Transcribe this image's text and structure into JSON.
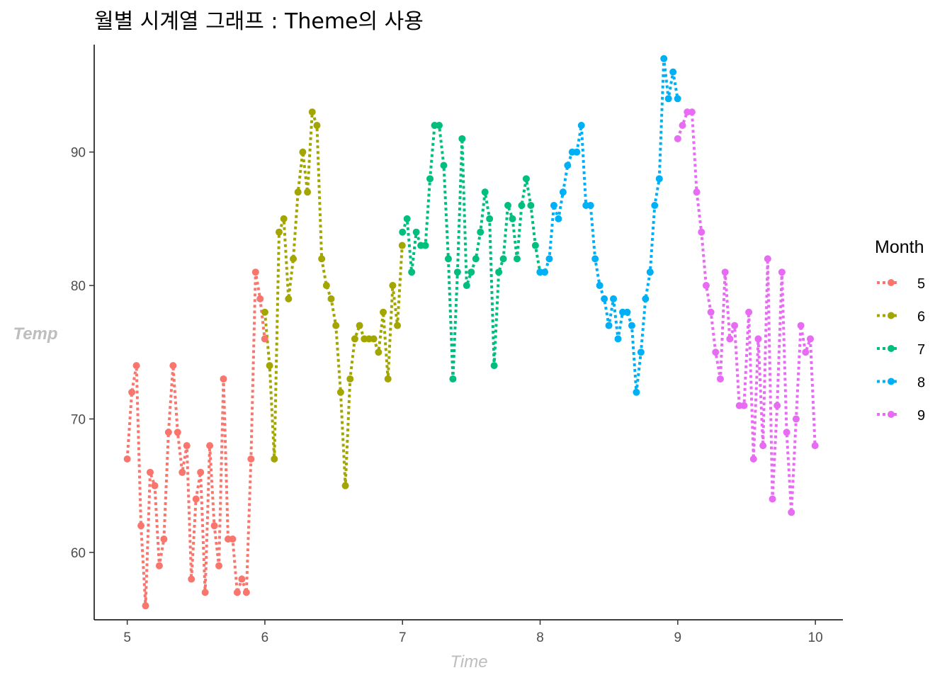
{
  "chart_data": {
    "type": "line",
    "title": "월별 시계열 그래프 : Theme의 사용",
    "xlabel": "Time",
    "ylabel": "Temp",
    "xlim": [
      4.76,
      10.2
    ],
    "ylim": [
      54.95,
      98.05
    ],
    "x_ticks": [
      5,
      6,
      7,
      8,
      9,
      10
    ],
    "y_ticks": [
      60,
      70,
      80,
      90
    ],
    "grid": false,
    "line_style": "dotted",
    "legend": {
      "title": "Month",
      "position": "right"
    },
    "series": [
      {
        "name": "5",
        "color": "#F8766D",
        "x0": 5.0,
        "step": 0.0333,
        "values": [
          67,
          72,
          74,
          62,
          56,
          66,
          65,
          59,
          61,
          69,
          74,
          69,
          66,
          68,
          58,
          64,
          66,
          57,
          68,
          62,
          59,
          73,
          61,
          61,
          57,
          58,
          57,
          67,
          81,
          79,
          76
        ]
      },
      {
        "name": "6",
        "color": "#A3A500",
        "x0": 6.0,
        "step": 0.0344,
        "values": [
          78,
          74,
          67,
          84,
          85,
          79,
          82,
          87,
          90,
          87,
          93,
          92,
          82,
          80,
          79,
          77,
          72,
          65,
          73,
          76,
          77,
          76,
          76,
          76,
          75,
          78,
          73,
          80,
          77,
          83
        ]
      },
      {
        "name": "7",
        "color": "#00BF7D",
        "x0": 7.0,
        "step": 0.0333,
        "values": [
          84,
          85,
          81,
          84,
          83,
          83,
          88,
          92,
          92,
          89,
          82,
          73,
          81,
          91,
          80,
          81,
          82,
          84,
          87,
          85,
          74,
          81,
          82,
          86,
          85,
          82,
          86,
          88,
          86,
          83,
          81
        ]
      },
      {
        "name": "8",
        "color": "#00B0F6",
        "x0": 8.0,
        "step": 0.0333,
        "values": [
          81,
          81,
          82,
          86,
          85,
          87,
          89,
          90,
          90,
          92,
          86,
          86,
          82,
          80,
          79,
          77,
          79,
          76,
          78,
          78,
          77,
          72,
          75,
          79,
          81,
          86,
          88,
          97,
          94,
          96,
          94
        ]
      },
      {
        "name": "9",
        "color": "#E76BF3",
        "x0": 9.0,
        "step": 0.0344,
        "values": [
          91,
          92,
          93,
          93,
          87,
          84,
          80,
          78,
          75,
          73,
          81,
          76,
          77,
          71,
          71,
          78,
          67,
          76,
          68,
          82,
          64,
          71,
          81,
          69,
          63,
          70,
          77,
          75,
          76,
          68
        ]
      }
    ]
  }
}
